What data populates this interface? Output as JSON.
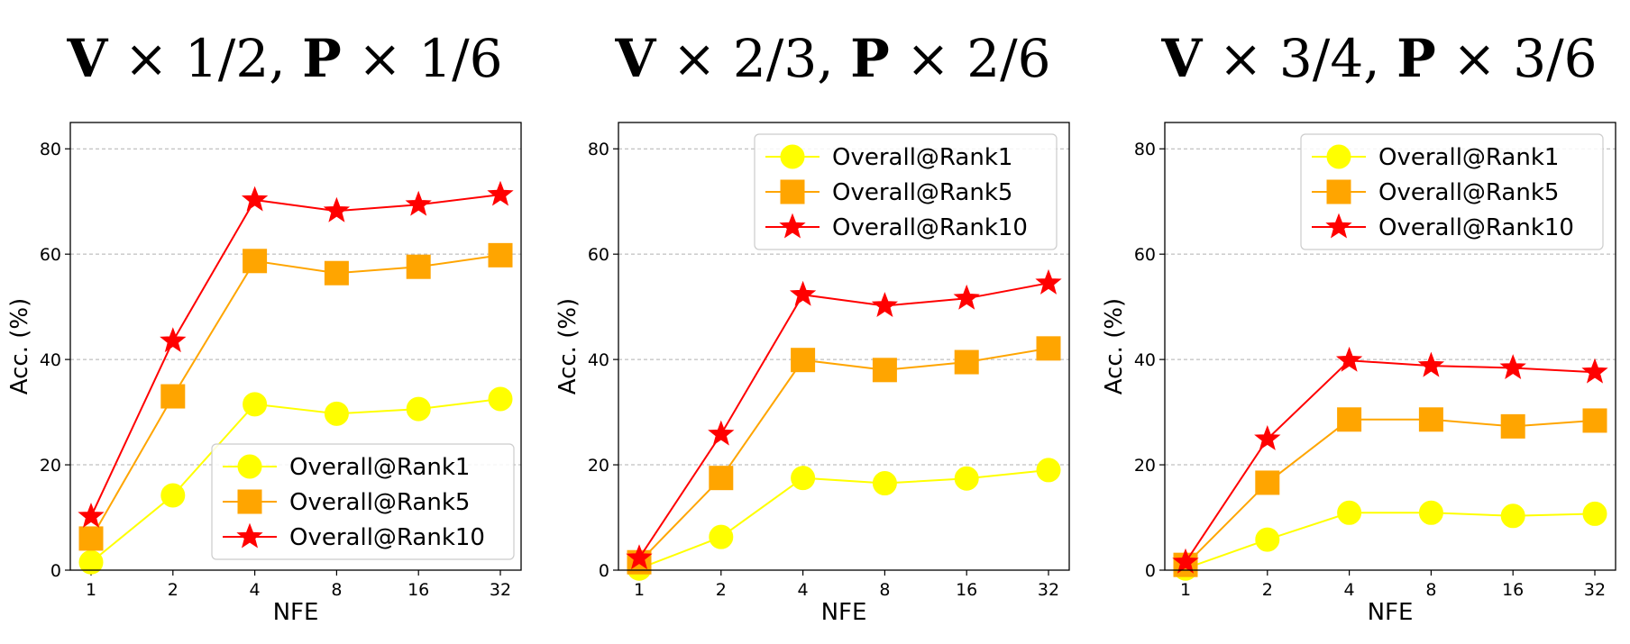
{
  "chart_data": [
    {
      "type": "line",
      "title_parts": [
        "V",
        " × 1/2, ",
        "P",
        " × 1/6"
      ],
      "xlabel": "NFE",
      "ylabel": "Acc. (%)",
      "categories": [
        "1",
        "2",
        "4",
        "8",
        "16",
        "32"
      ],
      "ylim": [
        0,
        85
      ],
      "yticks": [
        "0",
        "20",
        "40",
        "60",
        "80"
      ],
      "grid": "horizontal dashed",
      "legend_position": "lower-right",
      "series": [
        {
          "name": "Overall@Rank1",
          "marker": "circle",
          "color": "#ffff00",
          "values": [
            1.5,
            14.2,
            31.5,
            29.7,
            30.6,
            32.5
          ]
        },
        {
          "name": "Overall@Rank5",
          "marker": "square",
          "color": "#ffa500",
          "values": [
            6.0,
            33.0,
            58.7,
            56.4,
            57.6,
            59.8
          ]
        },
        {
          "name": "Overall@Rank10",
          "marker": "star",
          "color": "#ff0000",
          "values": [
            10.2,
            43.5,
            70.3,
            68.2,
            69.4,
            71.3
          ]
        }
      ]
    },
    {
      "type": "line",
      "title_parts": [
        "V",
        " × 2/3, ",
        "P",
        " × 2/6"
      ],
      "xlabel": "NFE",
      "ylabel": "Acc. (%)",
      "categories": [
        "1",
        "2",
        "4",
        "8",
        "16",
        "32"
      ],
      "ylim": [
        0,
        85
      ],
      "yticks": [
        "0",
        "20",
        "40",
        "60",
        "80"
      ],
      "grid": "horizontal dashed",
      "legend_position": "upper-right",
      "series": [
        {
          "name": "Overall@Rank1",
          "marker": "circle",
          "color": "#ffff00",
          "values": [
            0.3,
            6.3,
            17.5,
            16.5,
            17.4,
            19.0
          ]
        },
        {
          "name": "Overall@Rank5",
          "marker": "square",
          "color": "#ffa500",
          "values": [
            1.5,
            17.5,
            39.9,
            38.0,
            39.5,
            42.1
          ]
        },
        {
          "name": "Overall@Rank10",
          "marker": "star",
          "color": "#ff0000",
          "values": [
            2.3,
            25.8,
            52.3,
            50.2,
            51.6,
            54.5
          ]
        }
      ]
    },
    {
      "type": "line",
      "title_parts": [
        "V",
        " × 3/4, ",
        "P",
        " × 3/6"
      ],
      "xlabel": "NFE",
      "ylabel": "Acc. (%)",
      "categories": [
        "1",
        "2",
        "4",
        "8",
        "16",
        "32"
      ],
      "ylim": [
        0,
        85
      ],
      "yticks": [
        "0",
        "20",
        "40",
        "60",
        "80"
      ],
      "grid": "horizontal dashed",
      "legend_position": "upper-right",
      "series": [
        {
          "name": "Overall@Rank1",
          "marker": "circle",
          "color": "#ffff00",
          "values": [
            0.3,
            5.8,
            10.9,
            10.9,
            10.3,
            10.7
          ]
        },
        {
          "name": "Overall@Rank5",
          "marker": "square",
          "color": "#ffa500",
          "values": [
            1.0,
            16.6,
            28.6,
            28.6,
            27.3,
            28.4
          ]
        },
        {
          "name": "Overall@Rank10",
          "marker": "star",
          "color": "#ff0000",
          "values": [
            1.5,
            24.9,
            39.8,
            38.8,
            38.4,
            37.6
          ]
        }
      ]
    }
  ]
}
